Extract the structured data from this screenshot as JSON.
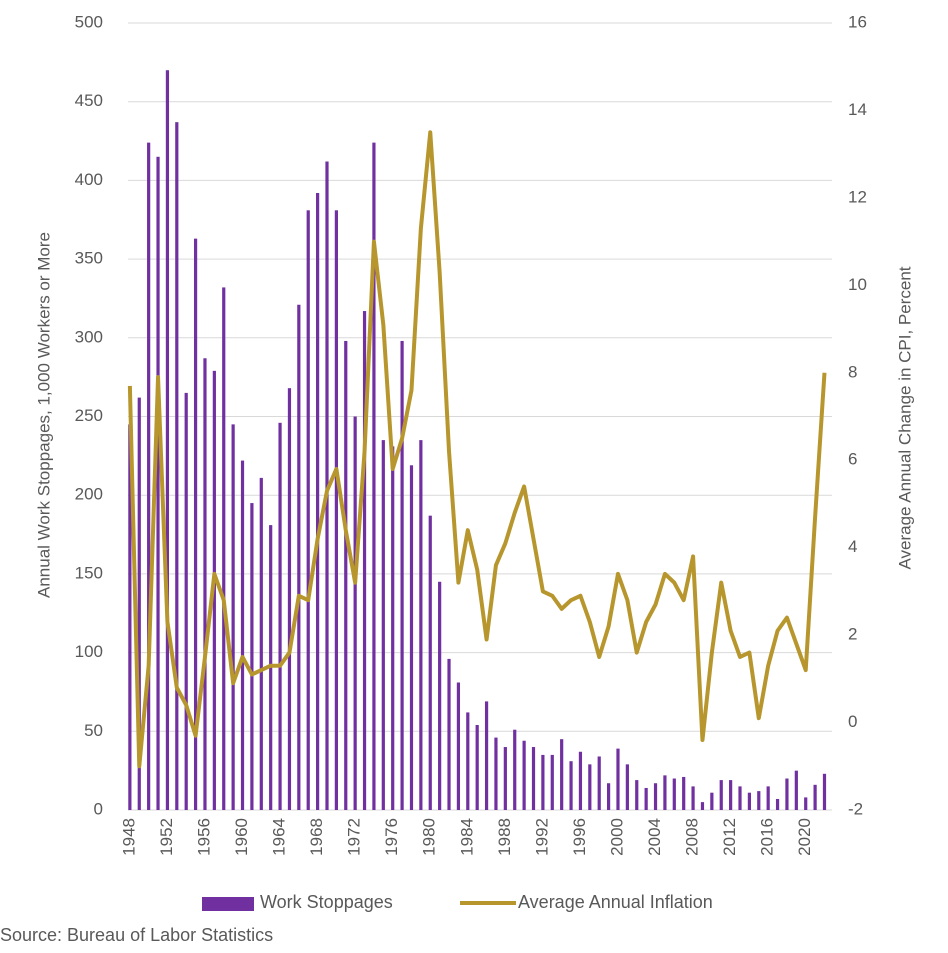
{
  "chart_data": {
    "type": "combo",
    "ylabel": "Annual Work Stoppages, 1,000 Workers or More",
    "y2label": "Average Annual Change in CPI, Percent",
    "source": "Source: Bureau of Labor Statistics",
    "x": [
      1948,
      1949,
      1950,
      1951,
      1952,
      1953,
      1954,
      1955,
      1956,
      1957,
      1958,
      1959,
      1960,
      1961,
      1962,
      1963,
      1964,
      1965,
      1966,
      1967,
      1968,
      1969,
      1970,
      1971,
      1972,
      1973,
      1974,
      1975,
      1976,
      1977,
      1978,
      1979,
      1980,
      1981,
      1982,
      1983,
      1984,
      1985,
      1986,
      1987,
      1988,
      1989,
      1990,
      1991,
      1992,
      1993,
      1994,
      1995,
      1996,
      1997,
      1998,
      1999,
      2000,
      2001,
      2002,
      2003,
      2004,
      2005,
      2006,
      2007,
      2008,
      2009,
      2010,
      2011,
      2012,
      2013,
      2014,
      2015,
      2016,
      2017,
      2018,
      2019,
      2020,
      2021,
      2022
    ],
    "xlim": [
      1947.8,
      2022.8
    ],
    "xticks": [
      1948,
      1952,
      1956,
      1960,
      1964,
      1968,
      1972,
      1976,
      1980,
      1984,
      1988,
      1992,
      1996,
      2000,
      2004,
      2008,
      2012,
      2016,
      2020
    ],
    "ylim": [
      0,
      500
    ],
    "yticks": [
      0,
      50,
      100,
      150,
      200,
      250,
      300,
      350,
      400,
      450,
      500
    ],
    "y2lim": [
      -2,
      16
    ],
    "y2ticks": [
      -2,
      0,
      2,
      4,
      6,
      8,
      10,
      12,
      14,
      16
    ],
    "grid": true,
    "series": [
      {
        "name": "Work Stoppages",
        "type": "bar",
        "color": "#7030a0",
        "values": [
          245,
          262,
          424,
          415,
          470,
          437,
          265,
          363,
          287,
          279,
          332,
          245,
          222,
          195,
          211,
          181,
          246,
          268,
          321,
          381,
          392,
          412,
          381,
          298,
          250,
          317,
          424,
          235,
          231,
          298,
          219,
          235,
          187,
          145,
          96,
          81,
          62,
          54,
          69,
          46,
          40,
          51,
          44,
          40,
          35,
          35,
          45,
          31,
          37,
          29,
          34,
          17,
          39,
          29,
          19,
          14,
          17,
          22,
          20,
          21,
          15,
          5,
          11,
          19,
          19,
          15,
          11,
          12,
          15,
          7,
          20,
          25,
          8,
          16,
          23
        ]
      },
      {
        "name": "Average Annual Inflation",
        "type": "line",
        "axis": "y2",
        "color": "#b8962e",
        "values": [
          7.7,
          -1.0,
          1.3,
          7.9,
          2.3,
          0.8,
          0.4,
          -0.3,
          1.5,
          3.4,
          2.8,
          0.9,
          1.5,
          1.1,
          1.2,
          1.3,
          1.3,
          1.6,
          2.9,
          2.8,
          4.2,
          5.3,
          5.8,
          4.4,
          3.2,
          6.2,
          11.0,
          9.1,
          5.8,
          6.5,
          7.6,
          11.3,
          13.5,
          10.3,
          6.2,
          3.2,
          4.4,
          3.5,
          1.9,
          3.6,
          4.1,
          4.8,
          5.4,
          4.2,
          3.0,
          2.9,
          2.6,
          2.8,
          2.9,
          2.3,
          1.5,
          2.2,
          3.4,
          2.8,
          1.6,
          2.3,
          2.7,
          3.4,
          3.2,
          2.8,
          3.8,
          -0.4,
          1.6,
          3.2,
          2.1,
          1.5,
          1.6,
          0.1,
          1.3,
          2.1,
          2.4,
          1.8,
          1.2,
          4.7,
          8.0
        ]
      }
    ]
  }
}
